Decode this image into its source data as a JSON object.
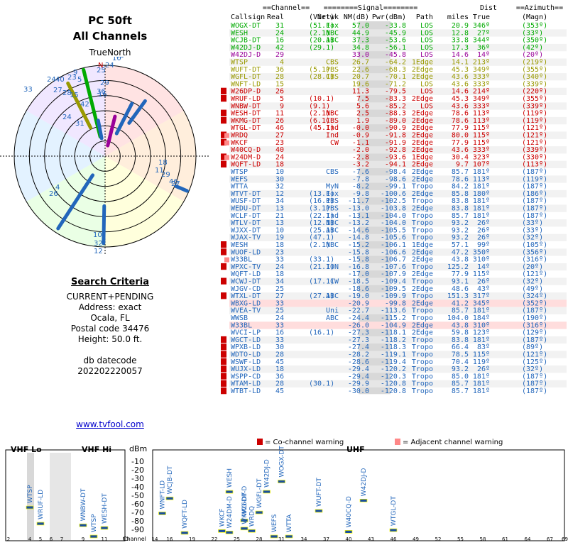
{
  "page": {
    "title": "PC 50ft",
    "subtitle": "All Channels",
    "polar_label": "TrueNorth",
    "north_marker": "N"
  },
  "search": {
    "heading": "Search Criteria",
    "mode": "CURRENT+PENDING",
    "address": "Address: exact",
    "city": "Ocala, FL",
    "postal": "Postal code 34476",
    "height": "Height: 50.0 ft.",
    "db_label": "db datecode",
    "db_code": "202202220057"
  },
  "link": "www.tvfool.com",
  "table": {
    "header_top": [
      "==Channel==",
      "========Signal========",
      "Dist",
      "==Azimuth=="
    ],
    "header_cols": [
      "Callsign",
      "Real",
      "(Virt)",
      "Netwk",
      "NM(dB)",
      "Pwr(dBm)",
      "Path",
      "miles",
      "True",
      "(Magn)"
    ],
    "rows": [
      [
        "WOGX-DT",
        "31",
        "(51.1)",
        "Fox",
        "57.0",
        "-33.8",
        "LOS",
        "20.9",
        "346º",
        "(353º)",
        "",
        "green"
      ],
      [
        "WESH",
        "24",
        "(2.1)",
        "NBC",
        "44.9",
        "-45.9",
        "LOS",
        "12.8",
        "27º",
        "(33º)",
        "",
        "green"
      ],
      [
        "WCJB-DT",
        "16",
        "(20.1)",
        "ABC",
        "37.3",
        "-53.6",
        "LOS",
        "33.8",
        "344º",
        "(350º)",
        "",
        "green"
      ],
      [
        "W42DJ-D",
        "42",
        "(29.1)",
        "",
        "34.8",
        "-56.1",
        "LOS",
        "17.3",
        "36º",
        "(42º)",
        "",
        "green"
      ],
      [
        "W42DJ-D",
        "29",
        "",
        "",
        "33.0",
        "-45.8",
        "LOS",
        "14.6",
        "14º",
        "(20º)",
        "",
        "purple"
      ],
      [
        "WTSP",
        "4",
        "",
        "CBS",
        "26.7",
        "-64.2",
        "1Edge",
        "14.1",
        "213º",
        "(219º)",
        "",
        "yellow"
      ],
      [
        "WUFT-DT",
        "36",
        "(5.1)",
        "PBS",
        "22.6",
        "-68.3",
        "2Edge",
        "45.3",
        "349º",
        "(355º)",
        "",
        "yellow"
      ],
      [
        "WGFL-DT",
        "28",
        "(28.1)",
        "CBS",
        "20.7",
        "-70.1",
        "2Edge",
        "43.6",
        "333º",
        "(340º)",
        "",
        "yellow"
      ],
      [
        "WNFT-LD",
        "15",
        "",
        "",
        "19.6",
        "-71.2",
        "LOS",
        "43.6",
        "333º",
        "(339º)",
        "",
        "yellow"
      ],
      [
        "W26DP-D",
        "26",
        "",
        "",
        "11.3",
        "-79.5",
        "LOS",
        "14.6",
        "214º",
        "(220º)",
        "C",
        "red"
      ],
      [
        "WRUF-LD",
        "5",
        "(10.1)",
        "",
        "7.5",
        "-83.3",
        "2Edge",
        "45.3",
        "349º",
        "(355º)",
        "C",
        "red"
      ],
      [
        "WNBW-DT",
        "9",
        "(9.1)",
        "",
        "5.6",
        "-85.2",
        "LOS",
        "43.6",
        "333º",
        "(339º)",
        "",
        "red"
      ],
      [
        "WESH-DT",
        "11",
        "(2.1)",
        "NBC",
        "2.5",
        "-88.3",
        "2Edge",
        "78.6",
        "113º",
        "(119º)",
        "C",
        "red"
      ],
      [
        "WKMG-DT",
        "26",
        "(6.1)",
        "CBS",
        "1.9",
        "-89.0",
        "2Edge",
        "78.6",
        "113º",
        "(119º)",
        "C",
        "red"
      ],
      [
        "WTGL-DT",
        "46",
        "(45.1)",
        "Ind",
        "-0.0",
        "-90.9",
        "2Edge",
        "77.9",
        "115º",
        "(121º)",
        "",
        "red"
      ],
      [
        "WRDQ",
        "27",
        "",
        "Ind",
        "-0.9",
        "-91.8",
        "2Edge",
        "80.0",
        "115º",
        "(121º)",
        "CA",
        "red"
      ],
      [
        "WKCF",
        "23",
        "",
        "CW",
        "-1.1",
        "-91.9",
        "2Edge",
        "77.9",
        "115º",
        "(121º)",
        "CA",
        "red"
      ],
      [
        "W40CQ-D",
        "40",
        "",
        "",
        "-2.0",
        "-92.8",
        "2Edge",
        "43.6",
        "333º",
        "(339º)",
        "",
        "red"
      ],
      [
        "W24DM-D",
        "24",
        "",
        "",
        "-2.8",
        "-93.6",
        "1Edge",
        "30.4",
        "323º",
        "(330º)",
        "CA",
        "red"
      ],
      [
        "WQFT-LD",
        "18",
        "",
        "",
        "-3.2",
        "-94.1",
        "2Edge",
        "9.7",
        "107º",
        "(113º)",
        "C",
        "red"
      ],
      [
        "WTSP",
        "10",
        "",
        "CBS",
        "-7.6",
        "-98.4",
        "2Edge",
        "85.7",
        "181º",
        "(187º)",
        "",
        "gray"
      ],
      [
        "WEFS",
        "30",
        "",
        "",
        "-7.8",
        "-98.6",
        "2Edge",
        "78.6",
        "113º",
        "(119º)",
        "",
        "gray"
      ],
      [
        "WTTA",
        "32",
        "",
        "MyN",
        "-8.2",
        "-99.1",
        "Tropo",
        "84.2",
        "181º",
        "(187º)",
        "",
        "gray"
      ],
      [
        "WTVT-DT",
        "12",
        "(13.1)",
        "Fox",
        "-9.8",
        "-100.6",
        "2Edge",
        "85.8",
        "180º",
        "(186º)",
        "",
        "gray"
      ],
      [
        "WUSF-DT",
        "34",
        "(16.1)",
        "PBS",
        "-11.7",
        "-102.5",
        "Tropo",
        "83.8",
        "181º",
        "(187º)",
        "",
        "gray"
      ],
      [
        "WEDU-DT",
        "13",
        "(3.1)",
        "PBS",
        "-13.0",
        "-103.8",
        "2Edge",
        "83.8",
        "181º",
        "(187º)",
        "",
        "gray"
      ],
      [
        "WCLF-DT",
        "21",
        "(22.1)",
        "Ind",
        "-13.1",
        "-104.0",
        "Tropo",
        "85.7",
        "181º",
        "(187º)",
        "",
        "gray"
      ],
      [
        "WTLV-DT",
        "13",
        "(12.1)",
        "NBC",
        "-13.2",
        "-104.0",
        "Tropo",
        "93.2",
        "26º",
        "(33º)",
        "",
        "gray"
      ],
      [
        "WJXX-DT",
        "10",
        "(25.1)",
        "ABC",
        "-14.6",
        "-105.5",
        "Tropo",
        "93.2",
        "26º",
        "(33º)",
        "",
        "gray"
      ],
      [
        "WJAX-TV",
        "19",
        "(47.1)",
        "",
        "-14.8",
        "-105.6",
        "Tropo",
        "93.2",
        "26º",
        "(32º)",
        "",
        "gray"
      ],
      [
        "WESH",
        "18",
        "(2.1)",
        "NBC",
        "-15.2",
        "-106.1",
        "1Edge",
        "57.1",
        "99º",
        "(105º)",
        "C",
        "gray"
      ],
      [
        "WUOF-LD",
        "23",
        "",
        "",
        "-15.8",
        "-106.6",
        "2Edge",
        "47.2",
        "350º",
        "(356º)",
        "C",
        "gray"
      ],
      [
        "W33BL",
        "33",
        "(33.1)",
        "",
        "-15.8",
        "-106.7",
        "2Edge",
        "43.8",
        "310º",
        "(316º)",
        "A",
        "gray"
      ],
      [
        "WPXC-TV",
        "24",
        "(21.1)",
        "ION",
        "-16.8",
        "-107.6",
        "Tropo",
        "125.2",
        "14º",
        "(20º)",
        "C",
        "gray"
      ],
      [
        "WQFT-LD",
        "18",
        "",
        "",
        "-17.0",
        "-107.9",
        "2Edge",
        "77.9",
        "115º",
        "(121º)",
        "",
        "gray"
      ],
      [
        "WCWJ-DT",
        "34",
        "(17.1)",
        "CW",
        "-18.5",
        "-109.4",
        "Tropo",
        "93.1",
        "26º",
        "(32º)",
        "C",
        "gray"
      ],
      [
        "WJGV-CD",
        "25",
        "",
        "",
        "-18.6",
        "-109.5",
        "2Edge",
        "48.6",
        "43º",
        "(49º)",
        "",
        "gray"
      ],
      [
        "WTXL-DT",
        "27",
        "(27.1)",
        "ABC",
        "-19.0",
        "-109.9",
        "Tropo",
        "151.3",
        "317º",
        "(324º)",
        "C",
        "gray"
      ],
      [
        "WBXG-LD",
        "33",
        "",
        "",
        "-20.9",
        "-99.8",
        "2Edge",
        "41.2",
        "345º",
        "(352º)",
        "",
        "pink"
      ],
      [
        "WVEA-TV",
        "25",
        "",
        "Uni",
        "-22.7",
        "-113.6",
        "Tropo",
        "85.7",
        "181º",
        "(187º)",
        "",
        "gray"
      ],
      [
        "WWSB",
        "24",
        "",
        "ABC",
        "-24.4",
        "-115.2",
        "Tropo",
        "104.0",
        "184º",
        "(190º)",
        "",
        "gray"
      ],
      [
        "W33BL",
        "33",
        "",
        "",
        "-26.0",
        "-104.9",
        "2Edge",
        "43.8",
        "310º",
        "(316º)",
        "",
        "pink"
      ],
      [
        "WVCI-LP",
        "16",
        "(16.1)",
        "",
        "-27.3",
        "-118.1",
        "2Edge",
        "59.8",
        "123º",
        "(129º)",
        "",
        "gray"
      ],
      [
        "WGCT-LD",
        "33",
        "",
        "",
        "-27.3",
        "-118.2",
        "Tropo",
        "83.8",
        "181º",
        "(187º)",
        "C",
        "gray"
      ],
      [
        "WPXB-LD",
        "30",
        "",
        "",
        "-27.4",
        "-118.3",
        "Tropo",
        "66.4",
        "83º",
        "(89º)",
        "C",
        "gray"
      ],
      [
        "WDTO-LD",
        "28",
        "",
        "",
        "-28.2",
        "-119.1",
        "Tropo",
        "78.5",
        "115º",
        "(121º)",
        "C",
        "gray"
      ],
      [
        "WSWF-LD",
        "45",
        "",
        "",
        "-28.6",
        "-119.4",
        "Tropo",
        "70.4",
        "119º",
        "(125º)",
        "C",
        "gray"
      ],
      [
        "WUJX-LD",
        "18",
        "",
        "",
        "-29.4",
        "-120.2",
        "Tropo",
        "93.2",
        "26º",
        "(32º)",
        "C",
        "gray"
      ],
      [
        "WSPP-CD",
        "36",
        "",
        "",
        "-29.4",
        "-120.3",
        "Tropo",
        "85.0",
        "181º",
        "(187º)",
        "C",
        "gray"
      ],
      [
        "WTAM-LD",
        "28",
        "(30.1)",
        "",
        "-29.9",
        "-120.8",
        "Tropo",
        "85.7",
        "181º",
        "(187º)",
        "C",
        "gray"
      ],
      [
        "WTBT-LD",
        "45",
        "",
        "",
        "-30.0",
        "-120.8",
        "Tropo",
        "85.7",
        "181º",
        "(187º)",
        "C",
        "gray"
      ]
    ]
  },
  "legend": {
    "co_label": "= Co-channel warning",
    "adj_label": "= Adjacent channel warning",
    "co_glyph": "C",
    "adj_glyph": "a"
  },
  "colors": {
    "green": "#00aa00",
    "yellow": "#999900",
    "red": "#cc0000",
    "gray": "#2266bb",
    "purple": "#990099",
    "pink_row_bg": "#ffdddd",
    "band_bg": "#d8d8d8",
    "warn_red": "#cc0000"
  },
  "chart_data": {
    "type": "scatter",
    "title": "",
    "bands": {
      "vhf_lo": "VHF Lo",
      "vhf_hi": "VHF Hi",
      "uhf": "UHF"
    },
    "ylabel": "dBm",
    "xlabel": "Channel",
    "ylim": [
      -95,
      -5
    ],
    "y_ticks": [
      -10,
      -20,
      -30,
      -40,
      -50,
      -60,
      -70,
      -80,
      -90
    ],
    "x_ticks": [
      2,
      4,
      5,
      6,
      7,
      9,
      11,
      13,
      14,
      16,
      19,
      22,
      25,
      28,
      31,
      34,
      37,
      40,
      43,
      46,
      49,
      52,
      55,
      58,
      61,
      64,
      67,
      69
    ],
    "points": [
      {
        "label": "WTSP",
        "ch": 4,
        "dbm": -64.2
      },
      {
        "label": "WRUF-LD",
        "ch": 5,
        "dbm": -83.3
      },
      {
        "label": "WNBW-DT",
        "ch": 9,
        "dbm": -85.2
      },
      {
        "label": "WTSP",
        "ch": 10,
        "dbm": -98.4
      },
      {
        "label": "WESH-DT",
        "ch": 11,
        "dbm": -88.3
      },
      {
        "label": "WNFT-LD",
        "ch": 15,
        "dbm": -71.2
      },
      {
        "label": "WCJB-DT",
        "ch": 16,
        "dbm": -53.6
      },
      {
        "label": "WQFT-LD",
        "ch": 18,
        "dbm": -94.1
      },
      {
        "label": "WKCF",
        "ch": 23,
        "dbm": -91.9
      },
      {
        "label": "W24DM-D",
        "ch": 24,
        "dbm": -93.6
      },
      {
        "label": "WESH",
        "ch": 24,
        "dbm": -45.9
      },
      {
        "label": "W26DP-D",
        "ch": 26,
        "dbm": -79.5
      },
      {
        "label": "WKMG-DT",
        "ch": 26,
        "dbm": -89.0
      },
      {
        "label": "WRDQ",
        "ch": 27,
        "dbm": -91.8
      },
      {
        "label": "WGFL-DT",
        "ch": 28,
        "dbm": -70.1
      },
      {
        "label": "W42DJ-D",
        "ch": 29,
        "dbm": -45.8
      },
      {
        "label": "WEFS",
        "ch": 30,
        "dbm": -98.6
      },
      {
        "label": "WOGX-DT",
        "ch": 31,
        "dbm": -33.8
      },
      {
        "label": "WTTA",
        "ch": 32,
        "dbm": -99.1
      },
      {
        "label": "WUFT-DT",
        "ch": 36,
        "dbm": -68.3
      },
      {
        "label": "W40CQ-D",
        "ch": 40,
        "dbm": -92.8
      },
      {
        "label": "W42DJ-D",
        "ch": 42,
        "dbm": -56.1
      },
      {
        "label": "WTGL-DT",
        "ch": 46,
        "dbm": -90.9
      }
    ]
  },
  "polar": {
    "rings": 6,
    "labels": [
      "29",
      "24",
      "19",
      "10",
      "23",
      "25",
      "40",
      "9",
      "5",
      "36",
      "33",
      "27",
      "24",
      "28",
      "15",
      "16",
      "31",
      "42",
      "24",
      "18",
      "11",
      "29",
      "46",
      "27",
      "4",
      "26",
      "10",
      "32",
      "12"
    ]
  }
}
